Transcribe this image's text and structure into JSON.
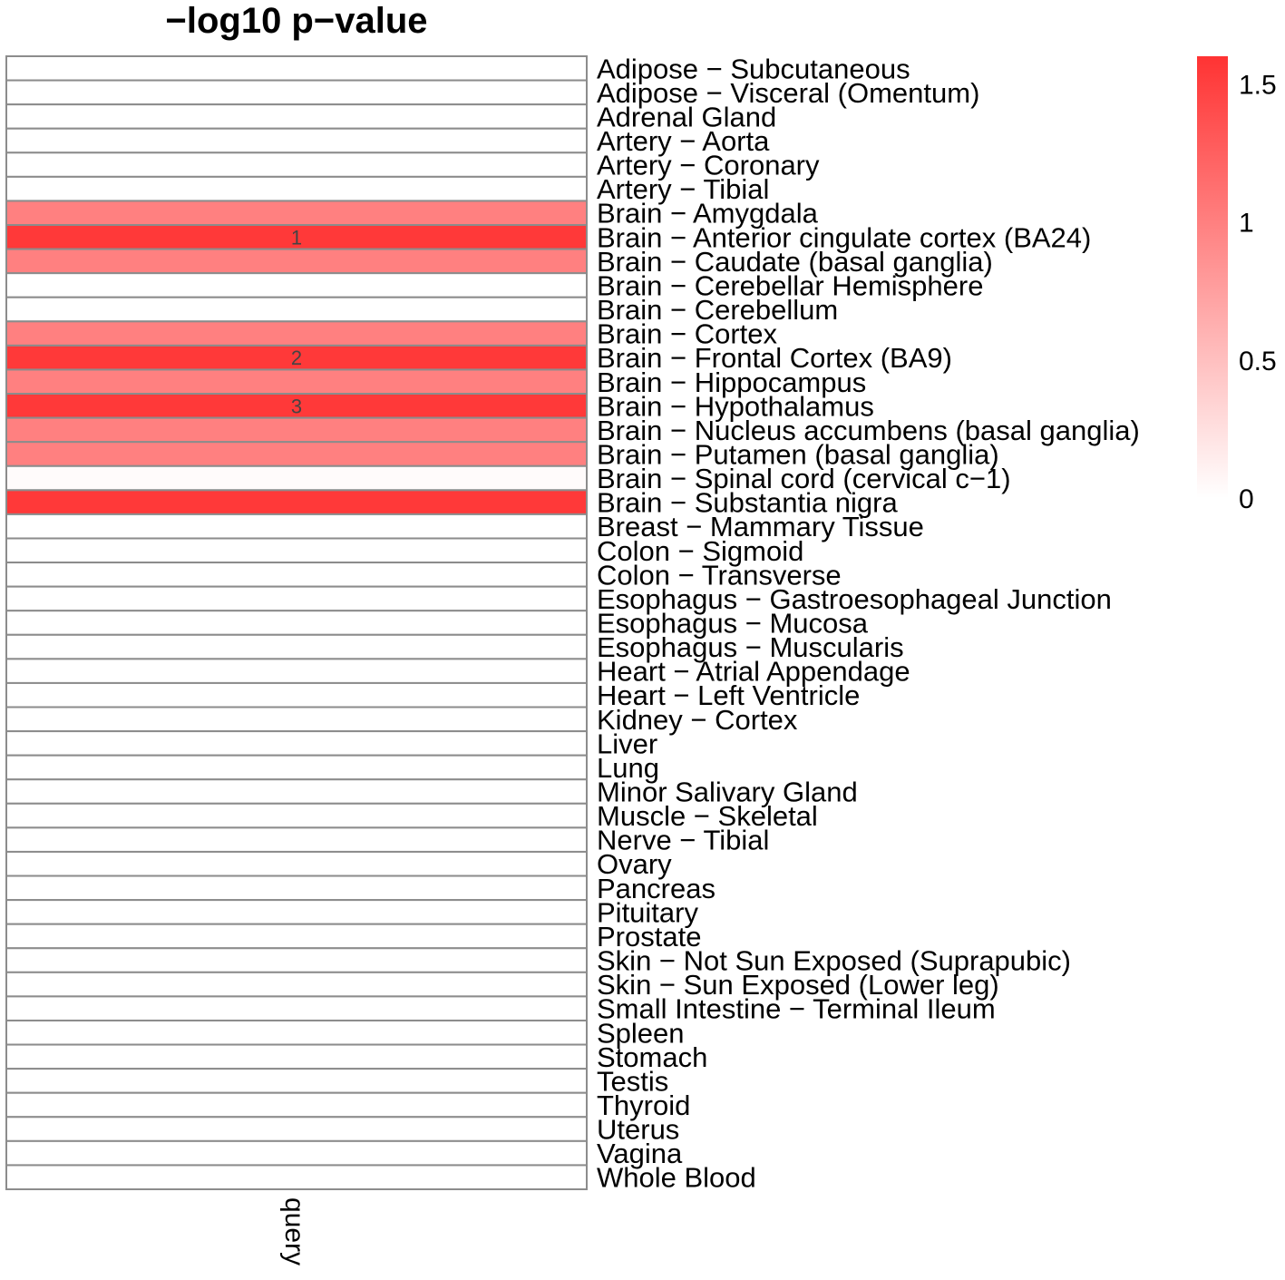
{
  "chart_data": {
    "type": "heatmap",
    "title": "−log10 p−value",
    "columns": [
      "query"
    ],
    "color_scale": {
      "min": 0,
      "max": 1.6,
      "low_color": "#ffffff",
      "high_color": "#ff3333"
    },
    "legend": {
      "ticks": [
        1.5,
        1,
        0.5,
        0
      ],
      "tick_labels": [
        "1.5",
        "1",
        "0.5",
        "0"
      ],
      "position": "right"
    },
    "rows": [
      {
        "label": "Adipose − Subcutaneous",
        "value": 0,
        "rank": ""
      },
      {
        "label": "Adipose − Visceral (Omentum)",
        "value": 0,
        "rank": ""
      },
      {
        "label": "Adrenal Gland",
        "value": 0,
        "rank": ""
      },
      {
        "label": "Artery − Aorta",
        "value": 0,
        "rank": ""
      },
      {
        "label": "Artery − Coronary",
        "value": 0,
        "rank": ""
      },
      {
        "label": "Artery − Tibial",
        "value": 0,
        "rank": ""
      },
      {
        "label": "Brain − Amygdala",
        "value": 1.0,
        "rank": ""
      },
      {
        "label": "Brain − Anterior cingulate cortex (BA24)",
        "value": 1.55,
        "rank": "1"
      },
      {
        "label": "Brain − Caudate (basal ganglia)",
        "value": 1.0,
        "rank": ""
      },
      {
        "label": "Brain − Cerebellar Hemisphere",
        "value": 0,
        "rank": ""
      },
      {
        "label": "Brain − Cerebellum",
        "value": 0,
        "rank": ""
      },
      {
        "label": "Brain − Cortex",
        "value": 1.0,
        "rank": ""
      },
      {
        "label": "Brain − Frontal Cortex (BA9)",
        "value": 1.55,
        "rank": "2"
      },
      {
        "label": "Brain − Hippocampus",
        "value": 1.0,
        "rank": ""
      },
      {
        "label": "Brain − Hypothalamus",
        "value": 1.55,
        "rank": "3"
      },
      {
        "label": "Brain − Nucleus accumbens (basal ganglia)",
        "value": 1.0,
        "rank": ""
      },
      {
        "label": "Brain − Putamen (basal ganglia)",
        "value": 1.0,
        "rank": ""
      },
      {
        "label": "Brain − Spinal cord (cervical c−1)",
        "value": 0.03,
        "rank": ""
      },
      {
        "label": "Brain − Substantia nigra",
        "value": 1.55,
        "rank": ""
      },
      {
        "label": "Breast − Mammary Tissue",
        "value": 0,
        "rank": ""
      },
      {
        "label": "Colon − Sigmoid",
        "value": 0,
        "rank": ""
      },
      {
        "label": "Colon − Transverse",
        "value": 0,
        "rank": ""
      },
      {
        "label": "Esophagus − Gastroesophageal Junction",
        "value": 0,
        "rank": ""
      },
      {
        "label": "Esophagus − Mucosa",
        "value": 0,
        "rank": ""
      },
      {
        "label": "Esophagus − Muscularis",
        "value": 0,
        "rank": ""
      },
      {
        "label": "Heart − Atrial Appendage",
        "value": 0,
        "rank": ""
      },
      {
        "label": "Heart − Left Ventricle",
        "value": 0,
        "rank": ""
      },
      {
        "label": "Kidney − Cortex",
        "value": 0,
        "rank": ""
      },
      {
        "label": "Liver",
        "value": 0,
        "rank": ""
      },
      {
        "label": "Lung",
        "value": 0,
        "rank": ""
      },
      {
        "label": "Minor Salivary Gland",
        "value": 0,
        "rank": ""
      },
      {
        "label": "Muscle − Skeletal",
        "value": 0,
        "rank": ""
      },
      {
        "label": "Nerve − Tibial",
        "value": 0,
        "rank": ""
      },
      {
        "label": "Ovary",
        "value": 0,
        "rank": ""
      },
      {
        "label": "Pancreas",
        "value": 0,
        "rank": ""
      },
      {
        "label": "Pituitary",
        "value": 0,
        "rank": ""
      },
      {
        "label": "Prostate",
        "value": 0,
        "rank": ""
      },
      {
        "label": "Skin − Not Sun Exposed (Suprapubic)",
        "value": 0,
        "rank": ""
      },
      {
        "label": "Skin − Sun Exposed (Lower leg)",
        "value": 0,
        "rank": ""
      },
      {
        "label": "Small Intestine − Terminal Ileum",
        "value": 0,
        "rank": ""
      },
      {
        "label": "Spleen",
        "value": 0,
        "rank": ""
      },
      {
        "label": "Stomach",
        "value": 0,
        "rank": ""
      },
      {
        "label": "Testis",
        "value": 0,
        "rank": ""
      },
      {
        "label": "Thyroid",
        "value": 0,
        "rank": ""
      },
      {
        "label": "Uterus",
        "value": 0,
        "rank": ""
      },
      {
        "label": "Vagina",
        "value": 0,
        "rank": ""
      },
      {
        "label": "Whole Blood",
        "value": 0,
        "rank": ""
      }
    ]
  }
}
